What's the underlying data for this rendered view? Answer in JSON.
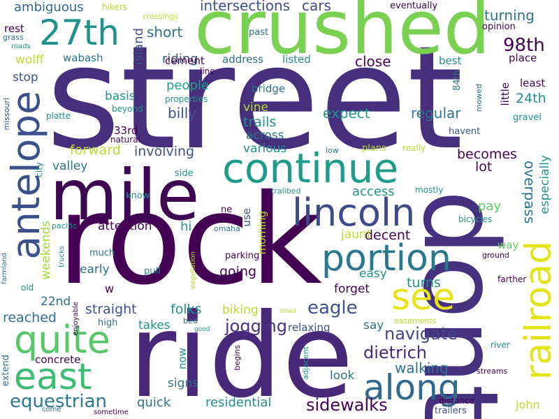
{
  "title": "word cloud",
  "palette": {
    "dark_purple": "#440154",
    "indigo": "#472f7d",
    "blue_violet": "#3b518b",
    "steel_blue": "#2c718e",
    "teal": "#21908d",
    "green_teal": "#27ad81",
    "green": "#5cc863",
    "lime": "#aadc32",
    "yellow": "#e6e419",
    "background": "#ffffff"
  },
  "words": [
    {
      "text": "street",
      "weight": 100
    },
    {
      "text": "rock",
      "weight": 92
    },
    {
      "text": "ride",
      "weight": 90
    },
    {
      "text": "dont",
      "weight": 88
    },
    {
      "text": "crushed",
      "weight": 74
    },
    {
      "text": "mile",
      "weight": 70
    },
    {
      "text": "continue",
      "weight": 50
    },
    {
      "text": "antelope",
      "weight": 48
    },
    {
      "text": "lincoln",
      "weight": 48
    },
    {
      "text": "railroad",
      "weight": 46
    },
    {
      "text": "quite",
      "weight": 46
    },
    {
      "text": "portion",
      "weight": 44
    },
    {
      "text": "east",
      "weight": 44
    },
    {
      "text": "along",
      "weight": 44
    },
    {
      "text": "see",
      "weight": 42
    },
    {
      "text": "27th",
      "weight": 40
    },
    {
      "text": "equestrian",
      "weight": 24
    },
    {
      "text": "98th",
      "weight": 24
    },
    {
      "text": "eagle",
      "weight": 24
    },
    {
      "text": "sidewalks",
      "weight": 22
    },
    {
      "text": "dietrich",
      "weight": 22
    },
    {
      "text": "navigate",
      "weight": 22
    },
    {
      "text": "jogging",
      "weight": 22
    },
    {
      "text": "intersections",
      "weight": 20
    },
    {
      "text": "cars",
      "weight": 20
    },
    {
      "text": "overpass",
      "weight": 20
    },
    {
      "text": "walking",
      "weight": 20
    },
    {
      "text": "ambiguous",
      "weight": 18
    },
    {
      "text": "riding",
      "weight": 18
    },
    {
      "text": "short",
      "weight": 18
    },
    {
      "text": "turning",
      "weight": 18
    },
    {
      "text": "island",
      "weight": 16
    },
    {
      "text": "close",
      "weight": 18
    },
    {
      "text": "wolff",
      "weight": 16
    },
    {
      "text": "stop",
      "weight": 16
    },
    {
      "text": "people",
      "weight": 18
    },
    {
      "text": "basis",
      "weight": 16
    },
    {
      "text": "billy",
      "weight": 18
    },
    {
      "text": "vine",
      "weight": 16
    },
    {
      "text": "trails",
      "weight": 18
    },
    {
      "text": "expect",
      "weight": 18
    },
    {
      "text": "regular",
      "weight": 18
    },
    {
      "text": "24th",
      "weight": 18
    },
    {
      "text": "forward",
      "weight": 18
    },
    {
      "text": "involving",
      "weight": 18
    },
    {
      "text": "across",
      "weight": 16
    },
    {
      "text": "various",
      "weight": 16
    },
    {
      "text": "becomes",
      "weight": 18
    },
    {
      "text": "valley",
      "weight": 16
    },
    {
      "text": "lot",
      "weight": 18
    },
    {
      "text": "especially",
      "weight": 16
    },
    {
      "text": "access",
      "weight": 16
    },
    {
      "text": "pay",
      "weight": 16
    },
    {
      "text": "attention",
      "weight": 16
    },
    {
      "text": "hi",
      "weight": 16
    },
    {
      "text": "decent",
      "weight": 18
    },
    {
      "text": "jaunt",
      "weight": 16
    },
    {
      "text": "weekends",
      "weight": 16
    },
    {
      "text": "early",
      "weight": 16
    },
    {
      "text": "going",
      "weight": 18
    },
    {
      "text": "easy",
      "weight": 16
    },
    {
      "text": "way",
      "weight": 14
    },
    {
      "text": "forget",
      "weight": 16
    },
    {
      "text": "turns",
      "weight": 18
    },
    {
      "text": "22nd",
      "weight": 16
    },
    {
      "text": "straight",
      "weight": 18
    },
    {
      "text": "folks",
      "weight": 18
    },
    {
      "text": "biking",
      "weight": 16
    },
    {
      "text": "reached",
      "weight": 18
    },
    {
      "text": "takes",
      "weight": 16
    },
    {
      "text": "say",
      "weight": 16
    },
    {
      "text": "concrete",
      "weight": 14
    },
    {
      "text": "now",
      "weight": 14
    },
    {
      "text": "signs",
      "weight": 16
    },
    {
      "text": "look",
      "weight": 16
    },
    {
      "text": "quick",
      "weight": 16
    },
    {
      "text": "residential",
      "weight": 16
    },
    {
      "text": "john",
      "weight": 14
    },
    {
      "text": "morning",
      "weight": 14
    },
    {
      "text": "use",
      "weight": 14
    },
    {
      "text": "relaxing",
      "weight": 14
    },
    {
      "text": "address",
      "weight": 14
    },
    {
      "text": "listed",
      "weight": 14
    },
    {
      "text": "best",
      "weight": 14
    },
    {
      "text": "place",
      "weight": 14
    },
    {
      "text": "least",
      "weight": 14
    },
    {
      "text": "little",
      "weight": 14
    },
    {
      "text": "bridge",
      "weight": 14
    },
    {
      "text": "cement",
      "weight": 14
    },
    {
      "text": "rest",
      "weight": 14
    },
    {
      "text": "wabash",
      "weight": 14
    },
    {
      "text": "opinion",
      "weight": 12
    },
    {
      "text": "33rd",
      "weight": 14
    },
    {
      "text": "w",
      "weight": 14
    },
    {
      "text": "extend",
      "weight": 12
    },
    {
      "text": "ne",
      "weight": 12
    },
    {
      "text": "know",
      "weight": 12
    },
    {
      "text": "side",
      "weight": 12
    },
    {
      "text": "parking",
      "weight": 12
    },
    {
      "text": "much",
      "weight": 12
    },
    {
      "text": "high",
      "weight": 12
    },
    {
      "text": "pull",
      "weight": 12
    },
    {
      "text": "hikers",
      "weight": 12
    },
    {
      "text": "crossings",
      "weight": 11
    },
    {
      "text": "eventually",
      "weight": 12
    },
    {
      "text": "past",
      "weight": 12
    },
    {
      "text": "grass",
      "weight": 11
    },
    {
      "text": "roads",
      "weight": 10
    },
    {
      "text": "line",
      "weight": 11
    },
    {
      "text": "properties",
      "weight": 11
    },
    {
      "text": "84th",
      "weight": 12
    },
    {
      "text": "mowed",
      "weight": 11
    },
    {
      "text": "gravel",
      "weight": 12
    },
    {
      "text": "havent",
      "weight": 12
    },
    {
      "text": "beyond",
      "weight": 12
    },
    {
      "text": "natural",
      "weight": 12
    },
    {
      "text": "platte",
      "weight": 12
    },
    {
      "text": "missouri",
      "weight": 11
    },
    {
      "text": "city",
      "weight": 12
    },
    {
      "text": "low",
      "weight": 11
    },
    {
      "text": "plans",
      "weight": 12
    },
    {
      "text": "really",
      "weight": 12
    },
    {
      "text": "trailbed",
      "weight": 11
    },
    {
      "text": "mostly",
      "weight": 12
    },
    {
      "text": "bicycles",
      "weight": 12
    },
    {
      "text": "pacific",
      "weight": 11
    },
    {
      "text": "omaha",
      "weight": 11
    },
    {
      "text": "trucks",
      "weight": 10
    },
    {
      "text": "vegetation",
      "weight": 10
    },
    {
      "text": "ground",
      "weight": 11
    },
    {
      "text": "farther",
      "weight": 12
    },
    {
      "text": "farmland",
      "weight": 10
    },
    {
      "text": "old",
      "weight": 12
    },
    {
      "text": "enjoyable",
      "weight": 10
    },
    {
      "text": "bed",
      "weight": 11
    },
    {
      "text": "good",
      "weight": 10
    },
    {
      "text": "small",
      "weight": 9
    },
    {
      "text": "easements",
      "weight": 11
    },
    {
      "text": "river",
      "weight": 11
    },
    {
      "text": "begins",
      "weight": 11
    },
    {
      "text": "adjacent",
      "weight": 11
    },
    {
      "text": "streams",
      "weight": 11
    },
    {
      "text": "distance",
      "weight": 12
    },
    {
      "text": "trailers",
      "weight": 12
    },
    {
      "text": "come",
      "weight": 10
    },
    {
      "text": "sometime",
      "weight": 10
    }
  ]
}
